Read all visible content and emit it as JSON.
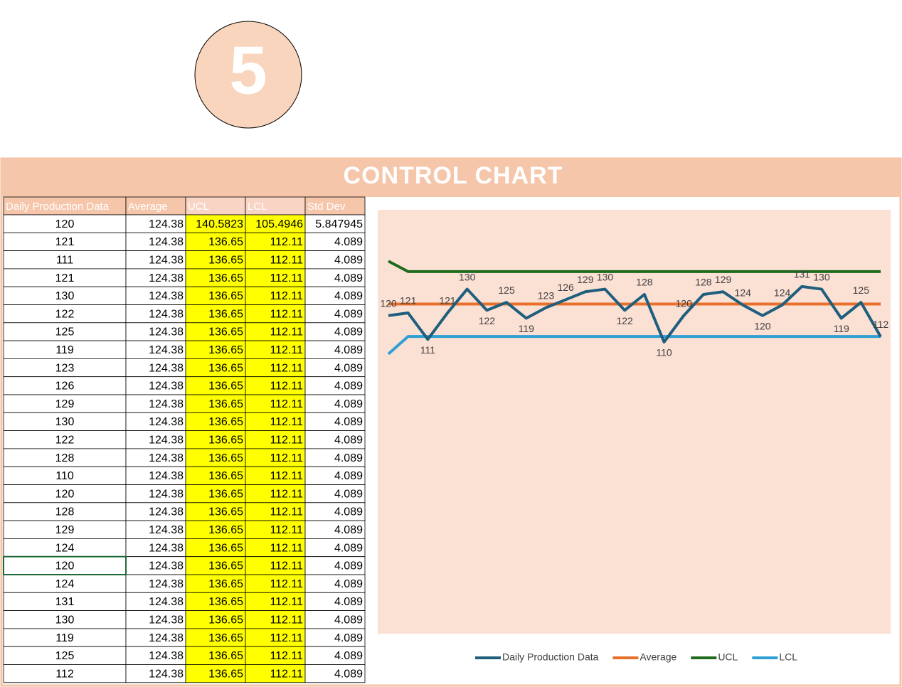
{
  "badge": "5",
  "title": "CONTROL CHART",
  "table": {
    "headers": [
      "Daily Production Data",
      "Average",
      "UCL",
      "LCL",
      "Std Dev"
    ],
    "rows": [
      [
        120,
        124.38,
        140.5823,
        105.4946,
        5.847945
      ],
      [
        121,
        124.38,
        136.65,
        112.11,
        4.089
      ],
      [
        111,
        124.38,
        136.65,
        112.11,
        4.089
      ],
      [
        121,
        124.38,
        136.65,
        112.11,
        4.089
      ],
      [
        130,
        124.38,
        136.65,
        112.11,
        4.089
      ],
      [
        122,
        124.38,
        136.65,
        112.11,
        4.089
      ],
      [
        125,
        124.38,
        136.65,
        112.11,
        4.089
      ],
      [
        119,
        124.38,
        136.65,
        112.11,
        4.089
      ],
      [
        123,
        124.38,
        136.65,
        112.11,
        4.089
      ],
      [
        126,
        124.38,
        136.65,
        112.11,
        4.089
      ],
      [
        129,
        124.38,
        136.65,
        112.11,
        4.089
      ],
      [
        130,
        124.38,
        136.65,
        112.11,
        4.089
      ],
      [
        122,
        124.38,
        136.65,
        112.11,
        4.089
      ],
      [
        128,
        124.38,
        136.65,
        112.11,
        4.089
      ],
      [
        110,
        124.38,
        136.65,
        112.11,
        4.089
      ],
      [
        120,
        124.38,
        136.65,
        112.11,
        4.089
      ],
      [
        128,
        124.38,
        136.65,
        112.11,
        4.089
      ],
      [
        129,
        124.38,
        136.65,
        112.11,
        4.089
      ],
      [
        124,
        124.38,
        136.65,
        112.11,
        4.089
      ],
      [
        120,
        124.38,
        136.65,
        112.11,
        4.089
      ],
      [
        124,
        124.38,
        136.65,
        112.11,
        4.089
      ],
      [
        131,
        124.38,
        136.65,
        112.11,
        4.089
      ],
      [
        130,
        124.38,
        136.65,
        112.11,
        4.089
      ],
      [
        119,
        124.38,
        136.65,
        112.11,
        4.089
      ],
      [
        125,
        124.38,
        136.65,
        112.11,
        4.089
      ],
      [
        112,
        124.38,
        136.65,
        112.11,
        4.089
      ]
    ]
  },
  "chart_data": {
    "type": "line",
    "ylim": [
      0,
      160
    ],
    "series": [
      {
        "name": "Daily Production Data",
        "color": "#1f5f7d",
        "labels": true,
        "values": [
          120,
          121,
          111,
          121,
          130,
          122,
          125,
          119,
          123,
          126,
          129,
          130,
          122,
          128,
          110,
          120,
          128,
          129,
          124,
          120,
          124,
          131,
          130,
          119,
          125,
          112
        ]
      },
      {
        "name": "Average",
        "color": "#e8702a",
        "values": [
          124.38,
          124.38,
          124.38,
          124.38,
          124.38,
          124.38,
          124.38,
          124.38,
          124.38,
          124.38,
          124.38,
          124.38,
          124.38,
          124.38,
          124.38,
          124.38,
          124.38,
          124.38,
          124.38,
          124.38,
          124.38,
          124.38,
          124.38,
          124.38,
          124.38,
          124.38
        ]
      },
      {
        "name": "UCL",
        "color": "#1e6b1e",
        "values": [
          140.5823,
          136.65,
          136.65,
          136.65,
          136.65,
          136.65,
          136.65,
          136.65,
          136.65,
          136.65,
          136.65,
          136.65,
          136.65,
          136.65,
          136.65,
          136.65,
          136.65,
          136.65,
          136.65,
          136.65,
          136.65,
          136.65,
          136.65,
          136.65,
          136.65,
          136.65
        ]
      },
      {
        "name": "LCL",
        "color": "#2e9fd3",
        "values": [
          105.4946,
          112.11,
          112.11,
          112.11,
          112.11,
          112.11,
          112.11,
          112.11,
          112.11,
          112.11,
          112.11,
          112.11,
          112.11,
          112.11,
          112.11,
          112.11,
          112.11,
          112.11,
          112.11,
          112.11,
          112.11,
          112.11,
          112.11,
          112.11,
          112.11,
          112.11
        ]
      }
    ]
  }
}
